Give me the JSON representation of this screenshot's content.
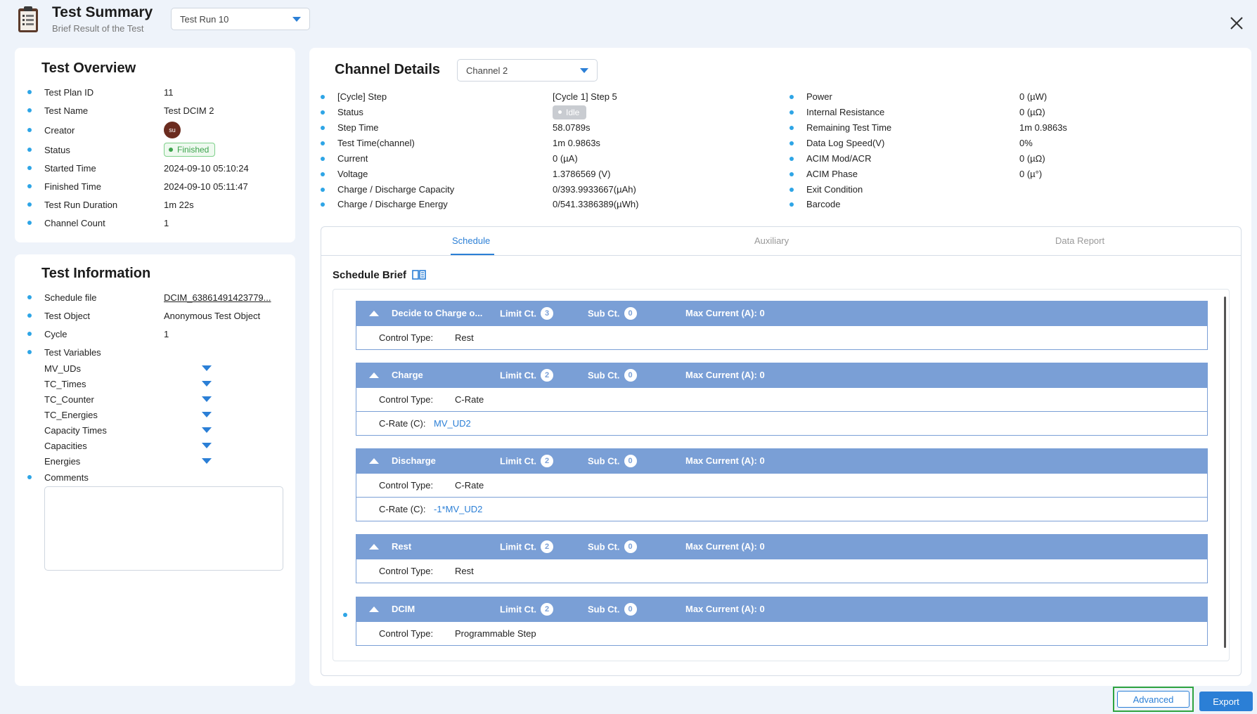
{
  "header": {
    "title": "Test Summary",
    "subtitle": "Brief Result of the Test",
    "run_select": "Test Run 10"
  },
  "overview": {
    "title": "Test Overview",
    "rows": [
      {
        "key": "Test Plan ID",
        "value": "11"
      },
      {
        "key": "Test Name",
        "value": "Test DCIM 2"
      },
      {
        "key": "Creator",
        "value": ""
      },
      {
        "key": "Status",
        "value": "Finished"
      },
      {
        "key": "Started Time",
        "value": "2024-09-10 05:10:24"
      },
      {
        "key": "Finished Time",
        "value": "2024-09-10 05:11:47"
      },
      {
        "key": "Test Run Duration",
        "value": "1m 22s"
      },
      {
        "key": "Channel Count",
        "value": "1"
      }
    ],
    "creator_initials": "su"
  },
  "info": {
    "title": "Test Information",
    "schedule_file_label": "Schedule file",
    "schedule_file_value": "DCIM_63861491423779...",
    "test_object_label": "Test Object",
    "test_object_value": "Anonymous Test Object",
    "cycle_label": "Cycle",
    "cycle_value": "1",
    "test_variables_label": "Test Variables",
    "variables": [
      "MV_UDs",
      "TC_Times",
      "TC_Counter",
      "TC_Energies",
      "Capacity Times",
      "Capacities",
      "Energies"
    ],
    "comments_label": "Comments"
  },
  "channel": {
    "title": "Channel Details",
    "select": "Channel 2",
    "left": [
      {
        "key": "[Cycle] Step",
        "value": "[Cycle 1] Step 5"
      },
      {
        "key": "Status",
        "value": "Idle"
      },
      {
        "key": "Step Time",
        "value": "58.0789s"
      },
      {
        "key": "Test Time(channel)",
        "value": "1m 0.9863s"
      },
      {
        "key": "Current",
        "value": "0 (µA)"
      },
      {
        "key": "Voltage",
        "value": "1.3786569 (V)"
      },
      {
        "key": "Charge / Discharge Capacity",
        "value": "0/393.9933667(µAh)"
      },
      {
        "key": "Charge / Discharge Energy",
        "value": "0/541.3386389(µWh)"
      }
    ],
    "right": [
      {
        "key": "Power",
        "value": "0 (µW)"
      },
      {
        "key": "Internal Resistance",
        "value": "0 (µΩ)"
      },
      {
        "key": "Remaining Test Time",
        "value": "1m 0.9863s"
      },
      {
        "key": "Data Log Speed(V)",
        "value": "0%"
      },
      {
        "key": "ACIM Mod/ACR",
        "value": "0 (µΩ)"
      },
      {
        "key": "ACIM Phase",
        "value": "0 (µ°)"
      },
      {
        "key": "Exit Condition",
        "value": ""
      },
      {
        "key": "Barcode",
        "value": ""
      }
    ]
  },
  "tabs": [
    "Schedule",
    "Auxiliary",
    "Data Report"
  ],
  "schedule": {
    "title": "Schedule Brief",
    "labels": {
      "limit": "Limit Ct.",
      "sub": "Sub Ct.",
      "max_current": "Max Current (A): 0",
      "control_type": "Control Type:",
      "c_rate": "C-Rate (C):"
    },
    "steps": [
      {
        "name": "Decide to Charge o...",
        "limit": "3",
        "sub": "0",
        "control": "Rest",
        "crate": ""
      },
      {
        "name": "Charge",
        "limit": "2",
        "sub": "0",
        "control": "C-Rate",
        "crate": "MV_UD2"
      },
      {
        "name": "Discharge",
        "limit": "2",
        "sub": "0",
        "control": "C-Rate",
        "crate": "-1*MV_UD2"
      },
      {
        "name": "Rest",
        "limit": "2",
        "sub": "0",
        "control": "Rest",
        "crate": ""
      },
      {
        "name": "DCIM",
        "limit": "2",
        "sub": "0",
        "control": "Programmable Step",
        "crate": ""
      }
    ]
  },
  "footer": {
    "advanced": "Advanced",
    "export": "Export"
  },
  "colors": {
    "accent": "#2b7fd6",
    "step_header": "#7a9fd6",
    "highlight": "#2fa43f",
    "bullet": "#2ea5e6"
  }
}
